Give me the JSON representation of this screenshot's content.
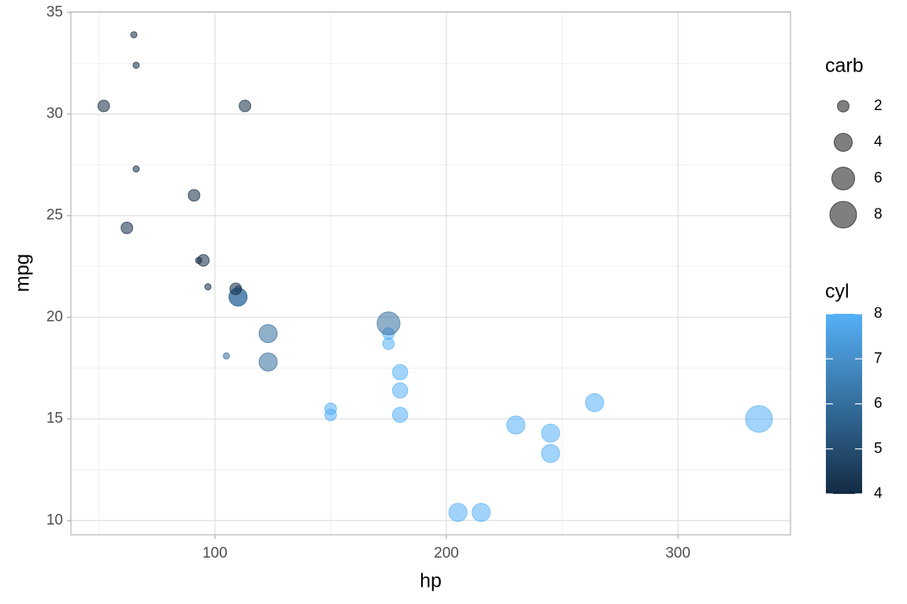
{
  "chart_data": {
    "type": "scatter",
    "x_label": "hp",
    "y_label": "mpg",
    "x": [
      110,
      110,
      93,
      110,
      175,
      105,
      245,
      62,
      95,
      123,
      123,
      180,
      180,
      180,
      205,
      215,
      230,
      66,
      52,
      65,
      97,
      150,
      150,
      245,
      175,
      66,
      91,
      113,
      264,
      175,
      335,
      109
    ],
    "y": [
      21.0,
      21.0,
      22.8,
      21.4,
      18.7,
      18.1,
      14.3,
      24.4,
      22.8,
      19.2,
      17.8,
      16.4,
      17.3,
      15.2,
      10.4,
      10.4,
      14.7,
      32.4,
      30.4,
      33.9,
      21.5,
      15.5,
      15.2,
      13.3,
      19.2,
      27.3,
      26.0,
      30.4,
      15.8,
      19.7,
      15.0,
      21.4
    ],
    "size": [
      4,
      4,
      1,
      1,
      2,
      1,
      4,
      2,
      2,
      4,
      4,
      3,
      3,
      3,
      4,
      4,
      4,
      1,
      2,
      1,
      1,
      2,
      2,
      4,
      2,
      1,
      2,
      2,
      4,
      6,
      8,
      2
    ],
    "color": [
      6,
      6,
      4,
      6,
      8,
      6,
      8,
      4,
      4,
      6,
      6,
      8,
      8,
      8,
      8,
      8,
      8,
      4,
      4,
      4,
      4,
      8,
      8,
      8,
      8,
      4,
      4,
      4,
      8,
      6,
      8,
      4
    ],
    "xlim": [
      37.8,
      348.6
    ],
    "xticks": [
      100,
      200,
      300
    ],
    "ylim": [
      9.3,
      35.03
    ],
    "yticks": [
      10,
      15,
      20,
      25,
      30,
      35
    ],
    "grid": true,
    "size_legend": {
      "title": "carb",
      "values": [
        2,
        4,
        6,
        8
      ]
    },
    "color_legend": {
      "title": "cyl",
      "lim": [
        4,
        8
      ],
      "ticks": [
        4,
        5,
        6,
        7,
        8
      ],
      "colors": [
        "#132B43",
        "#56B1F7"
      ]
    }
  }
}
